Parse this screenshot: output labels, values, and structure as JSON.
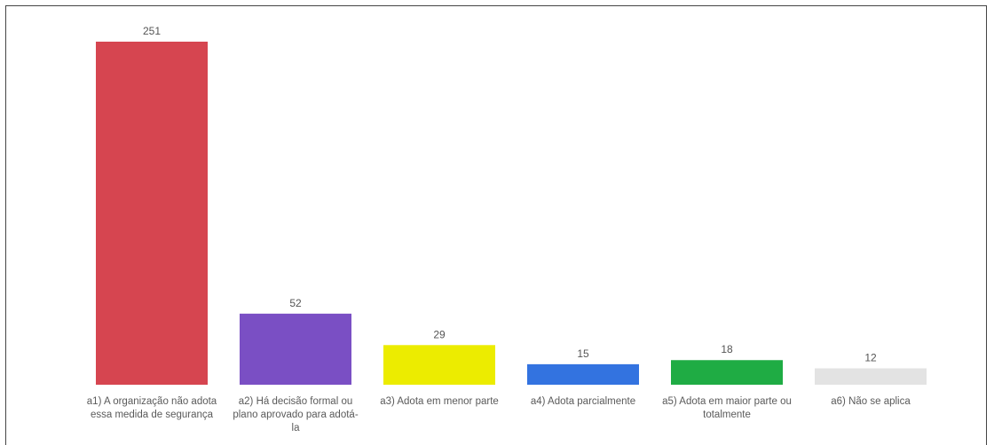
{
  "chart_data": {
    "type": "bar",
    "categories": [
      "a1) A organização não adota essa medida de segurança",
      "a2) Há decisão formal ou plano aprovado para adotá-la",
      "a3) Adota em menor parte",
      "a4) Adota parcialmente",
      "a5) Adota em maior parte ou totalmente",
      "a6) Não se aplica"
    ],
    "values": [
      251,
      52,
      29,
      15,
      18,
      12
    ],
    "colors": [
      "#d64550",
      "#7a4fc4",
      "#ecec00",
      "#3373e0",
      "#1fac44",
      "#e3e3e3"
    ],
    "data_labels": [
      "251",
      "52",
      "29",
      "15",
      "18",
      "12"
    ],
    "title": "",
    "xlabel": "",
    "ylabel": "",
    "ylim": [
      0,
      251
    ],
    "grid": false,
    "legend": "none"
  }
}
